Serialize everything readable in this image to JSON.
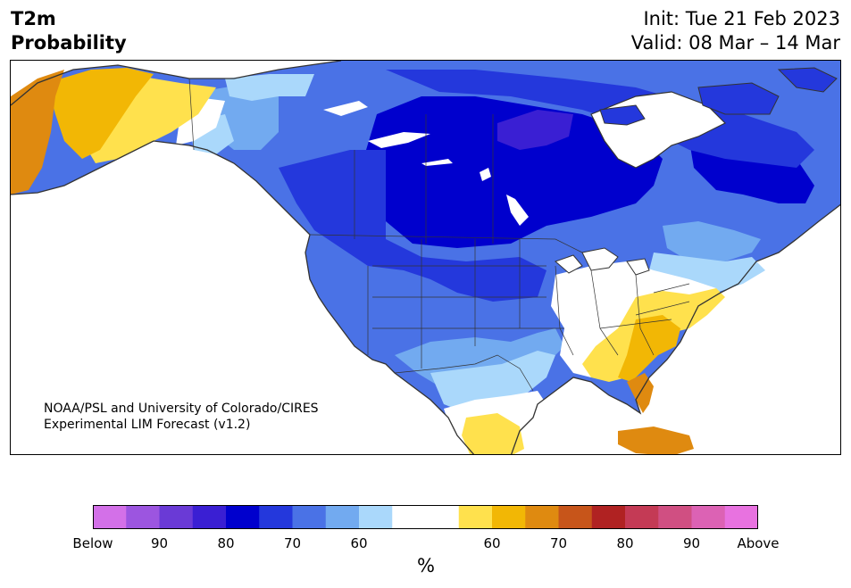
{
  "title": {
    "line1": "T2m",
    "line2": "Probability"
  },
  "header_right": {
    "init": "Init: Tue 21 Feb 2023",
    "valid": "Valid: 08 Mar – 14 Mar"
  },
  "credit": {
    "line1": "NOAA/PSL and University of Colorado/CIRES",
    "line2": "Experimental LIM Forecast (v1.2)"
  },
  "colorbar": {
    "unit": "%",
    "colors": [
      "#d370e8",
      "#9c55e0",
      "#6a3ad6",
      "#3a1fd3",
      "#0000cd",
      "#2438dc",
      "#4a72e6",
      "#72aaf0",
      "#aad8fb",
      "#ffffff",
      "#ffffff",
      "#ffe14d",
      "#f2b705",
      "#df8a10",
      "#c7551a",
      "#b02222",
      "#c43a55",
      "#d04f82",
      "#dc62b4",
      "#e872e0"
    ],
    "tick_labels": [
      "Below",
      "90",
      "80",
      "70",
      "60",
      "60",
      "70",
      "80",
      "90",
      "Above"
    ]
  },
  "map": {
    "colors": {
      "below_90": "#9c55e0",
      "below_80": "#3a1fd3",
      "below_70": "#0000cd",
      "below_60": "#2438dc",
      "below_50": "#4a72e6",
      "below_40": "#72aaf0",
      "below_33": "#aad8fb",
      "near_normal": "#ffffff",
      "above_33": "#ffe14d",
      "above_50": "#f2b705",
      "above_60": "#df8a10",
      "coast": "#333333"
    }
  }
}
